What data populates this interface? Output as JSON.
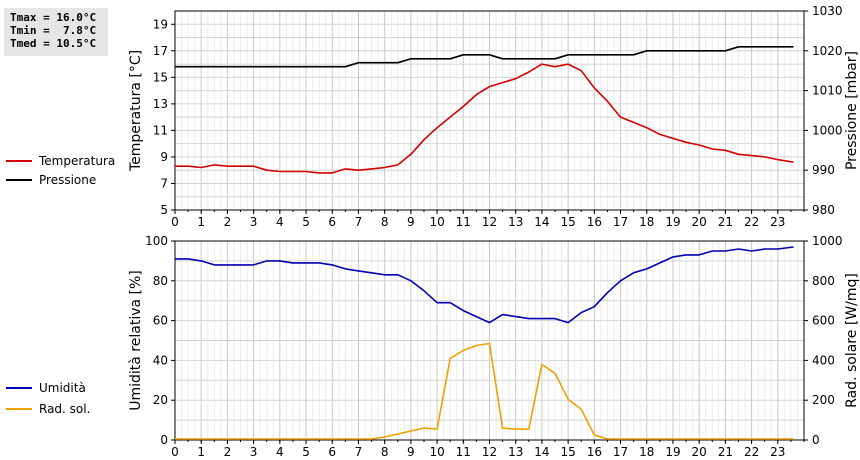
{
  "stats": {
    "tmax": "Tmax = 16.0°C",
    "tmin": "Tmin =  7.8°C",
    "tmed": "Tmed = 10.5°C"
  },
  "colors": {
    "temperature": "#d40000",
    "pressure": "#000000",
    "humidity": "#0000b4",
    "solar": "#f0a000",
    "grid": "#d4d4d4"
  },
  "chart_data": [
    {
      "type": "line",
      "xlim": [
        0,
        24
      ],
      "x_ticks": [
        0,
        1,
        2,
        3,
        4,
        5,
        6,
        7,
        8,
        9,
        10,
        11,
        12,
        13,
        14,
        15,
        16,
        17,
        18,
        19,
        20,
        21,
        22,
        23
      ],
      "grid": true,
      "legend_position": "left",
      "left_axis": {
        "label": "Temperatura [°C]",
        "lim": [
          5,
          20
        ],
        "ticks": [
          5,
          7,
          9,
          11,
          13,
          15,
          17,
          19
        ]
      },
      "right_axis": {
        "label": "Pressione [mbar]",
        "lim": [
          980,
          1030
        ],
        "ticks": [
          980,
          990,
          1000,
          1010,
          1020,
          1030
        ]
      },
      "series": [
        {
          "name": "Temperatura",
          "axis": "left",
          "color": "#d40000",
          "points": [
            [
              0,
              8.3
            ],
            [
              0.5,
              8.3
            ],
            [
              1,
              8.2
            ],
            [
              1.5,
              8.4
            ],
            [
              2,
              8.3
            ],
            [
              2.5,
              8.3
            ],
            [
              3,
              8.3
            ],
            [
              3.5,
              8.0
            ],
            [
              4,
              7.9
            ],
            [
              4.5,
              7.9
            ],
            [
              5,
              7.9
            ],
            [
              5.5,
              7.8
            ],
            [
              6,
              7.8
            ],
            [
              6.5,
              8.1
            ],
            [
              7,
              8.0
            ],
            [
              7.5,
              8.1
            ],
            [
              8,
              8.2
            ],
            [
              8.5,
              8.4
            ],
            [
              9,
              9.2
            ],
            [
              9.5,
              10.3
            ],
            [
              10,
              11.2
            ],
            [
              10.5,
              12.0
            ],
            [
              11,
              12.8
            ],
            [
              11.5,
              13.7
            ],
            [
              12,
              14.3
            ],
            [
              12.5,
              14.6
            ],
            [
              13,
              14.9
            ],
            [
              13.5,
              15.4
            ],
            [
              14,
              16.0
            ],
            [
              14.5,
              15.8
            ],
            [
              15,
              16.0
            ],
            [
              15.5,
              15.5
            ],
            [
              16,
              14.2
            ],
            [
              16.5,
              13.2
            ],
            [
              17,
              12.0
            ],
            [
              17.5,
              11.6
            ],
            [
              18,
              11.2
            ],
            [
              18.5,
              10.7
            ],
            [
              19,
              10.4
            ],
            [
              19.5,
              10.1
            ],
            [
              20,
              9.9
            ],
            [
              20.5,
              9.6
            ],
            [
              21,
              9.5
            ],
            [
              21.5,
              9.2
            ],
            [
              22,
              9.1
            ],
            [
              22.5,
              9.0
            ],
            [
              23,
              8.8
            ],
            [
              23.6,
              8.6
            ]
          ]
        },
        {
          "name": "Pressione",
          "axis": "right",
          "color": "#000000",
          "points": [
            [
              0,
              1016
            ],
            [
              6.5,
              1016
            ],
            [
              7,
              1017
            ],
            [
              8.5,
              1017
            ],
            [
              9,
              1018
            ],
            [
              10.5,
              1018
            ],
            [
              11,
              1019
            ],
            [
              12,
              1019
            ],
            [
              12.5,
              1018
            ],
            [
              14.5,
              1018
            ],
            [
              15,
              1019
            ],
            [
              17.5,
              1019
            ],
            [
              18,
              1020
            ],
            [
              21,
              1020
            ],
            [
              21.5,
              1021
            ],
            [
              23.6,
              1021
            ]
          ]
        }
      ]
    },
    {
      "type": "line",
      "xlim": [
        0,
        24
      ],
      "x_ticks": [
        0,
        1,
        2,
        3,
        4,
        5,
        6,
        7,
        8,
        9,
        10,
        11,
        12,
        13,
        14,
        15,
        16,
        17,
        18,
        19,
        20,
        21,
        22,
        23
      ],
      "grid": true,
      "legend_position": "left",
      "left_axis": {
        "label": "Umidità relativa [%]",
        "lim": [
          0,
          100
        ],
        "ticks": [
          0,
          20,
          40,
          60,
          80,
          100
        ]
      },
      "right_axis": {
        "label": "Rad. solare [W/mq]",
        "lim": [
          0,
          1000
        ],
        "ticks": [
          0,
          200,
          400,
          600,
          800,
          1000
        ]
      },
      "series": [
        {
          "name": "Umidità",
          "axis": "left",
          "color": "#0000b4",
          "points": [
            [
              0,
              91
            ],
            [
              0.5,
              91
            ],
            [
              1,
              90
            ],
            [
              1.5,
              88
            ],
            [
              2,
              88
            ],
            [
              2.5,
              88
            ],
            [
              3,
              88
            ],
            [
              3.5,
              90
            ],
            [
              4,
              90
            ],
            [
              4.5,
              89
            ],
            [
              5,
              89
            ],
            [
              5.5,
              89
            ],
            [
              6,
              88
            ],
            [
              6.5,
              86
            ],
            [
              7,
              85
            ],
            [
              7.5,
              84
            ],
            [
              8,
              83
            ],
            [
              8.5,
              83
            ],
            [
              9,
              80
            ],
            [
              9.5,
              75
            ],
            [
              10,
              69
            ],
            [
              10.5,
              69
            ],
            [
              11,
              65
            ],
            [
              11.5,
              62
            ],
            [
              12,
              59
            ],
            [
              12.5,
              63
            ],
            [
              13,
              62
            ],
            [
              13.5,
              61
            ],
            [
              14,
              61
            ],
            [
              14.5,
              61
            ],
            [
              15,
              59
            ],
            [
              15.5,
              64
            ],
            [
              16,
              67
            ],
            [
              16.5,
              74
            ],
            [
              17,
              80
            ],
            [
              17.5,
              84
            ],
            [
              18,
              86
            ],
            [
              18.5,
              89
            ],
            [
              19,
              92
            ],
            [
              19.5,
              93
            ],
            [
              20,
              93
            ],
            [
              20.5,
              95
            ],
            [
              21,
              95
            ],
            [
              21.5,
              96
            ],
            [
              22,
              95
            ],
            [
              22.5,
              96
            ],
            [
              23,
              96
            ],
            [
              23.6,
              97
            ]
          ]
        },
        {
          "name": "Rad. sol.",
          "axis": "right",
          "color": "#f0a000",
          "points": [
            [
              0,
              5
            ],
            [
              7.5,
              5
            ],
            [
              8,
              15
            ],
            [
              8.5,
              30
            ],
            [
              9,
              45
            ],
            [
              9.5,
              60
            ],
            [
              10,
              55
            ],
            [
              10.5,
              410
            ],
            [
              11,
              450
            ],
            [
              11.5,
              475
            ],
            [
              12,
              485
            ],
            [
              12.5,
              60
            ],
            [
              13,
              55
            ],
            [
              13.5,
              55
            ],
            [
              14,
              380
            ],
            [
              14.5,
              335
            ],
            [
              15,
              205
            ],
            [
              15.5,
              155
            ],
            [
              16,
              25
            ],
            [
              16.5,
              5
            ],
            [
              23.6,
              5
            ]
          ]
        }
      ]
    }
  ]
}
